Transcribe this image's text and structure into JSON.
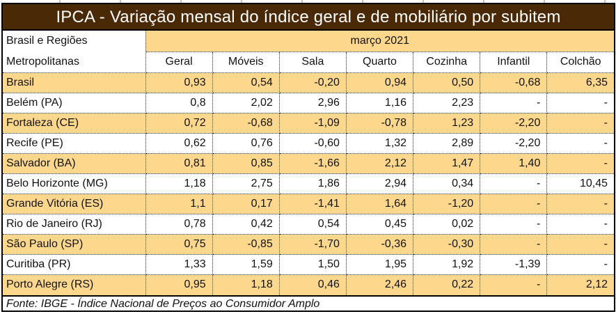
{
  "title": "IPCA - Variação mensal do índice geral e de mobiliário por subitem",
  "header": {
    "row_header_line1": "Brasil e Regiões",
    "row_header_line2": "Metropolitanas"
  },
  "footer": {
    "source": "Fonte: IBGE - Índice Nacional de Preços ao Consumidor Amplo"
  },
  "colors": {
    "title_bg": "#4a2906",
    "title_text": "#ffffff",
    "band": "#fdd78c",
    "border": "#000000"
  },
  "chart_data": {
    "type": "table",
    "title": "IPCA - Variação mensal do índice geral e de mobiliário por subitem",
    "period": "março 2021",
    "row_label_header": "Brasil e Regiões Metropolitanas",
    "columns": [
      "Geral",
      "Móveis",
      "Sala",
      "Quarto",
      "Cozinha",
      "Infantil",
      "Colchão"
    ],
    "missing_marker": "-",
    "rows": [
      {
        "region": "Brasil",
        "values": [
          "0,93",
          "0,54",
          "-0,20",
          "0,94",
          "0,50",
          "-0,68",
          "6,35"
        ]
      },
      {
        "region": "Belém (PA)",
        "values": [
          "0,8",
          "2,02",
          "2,96",
          "1,16",
          "2,23",
          "-",
          "-"
        ]
      },
      {
        "region": "Fortaleza (CE)",
        "values": [
          "0,72",
          "-0,68",
          "-1,09",
          "-0,78",
          "1,23",
          "-2,20",
          "-"
        ]
      },
      {
        "region": "Recife (PE)",
        "values": [
          "0,62",
          "0,76",
          "-0,60",
          "1,32",
          "2,89",
          "-2,20",
          "-"
        ]
      },
      {
        "region": "Salvador (BA)",
        "values": [
          "0,81",
          "0,85",
          "-1,66",
          "2,12",
          "1,47",
          "1,40",
          "-"
        ]
      },
      {
        "region": "Belo Horizonte (MG)",
        "values": [
          "1,18",
          "2,75",
          "1,86",
          "2,94",
          "0,34",
          "-",
          "10,45"
        ]
      },
      {
        "region": "Grande Vitória (ES)",
        "values": [
          "1,1",
          "0,17",
          "-1,41",
          "1,64",
          "-1,20",
          "-",
          "-"
        ]
      },
      {
        "region": "Rio de Janeiro (RJ)",
        "values": [
          "0,78",
          "0,42",
          "0,54",
          "0,45",
          "0,02",
          "-",
          "-"
        ]
      },
      {
        "region": "São Paulo (SP)",
        "values": [
          "0,75",
          "-0,85",
          "-1,70",
          "-0,36",
          "-0,30",
          "-",
          "-"
        ]
      },
      {
        "region": "Curitiba (PR)",
        "values": [
          "1,33",
          "1,59",
          "1,50",
          "1,95",
          "1,92",
          "-1,39",
          "-"
        ]
      },
      {
        "region": "Porto Alegre (RS)",
        "values": [
          "0,95",
          "1,18",
          "0,46",
          "2,46",
          "0,22",
          "-",
          "2,12"
        ]
      }
    ]
  }
}
